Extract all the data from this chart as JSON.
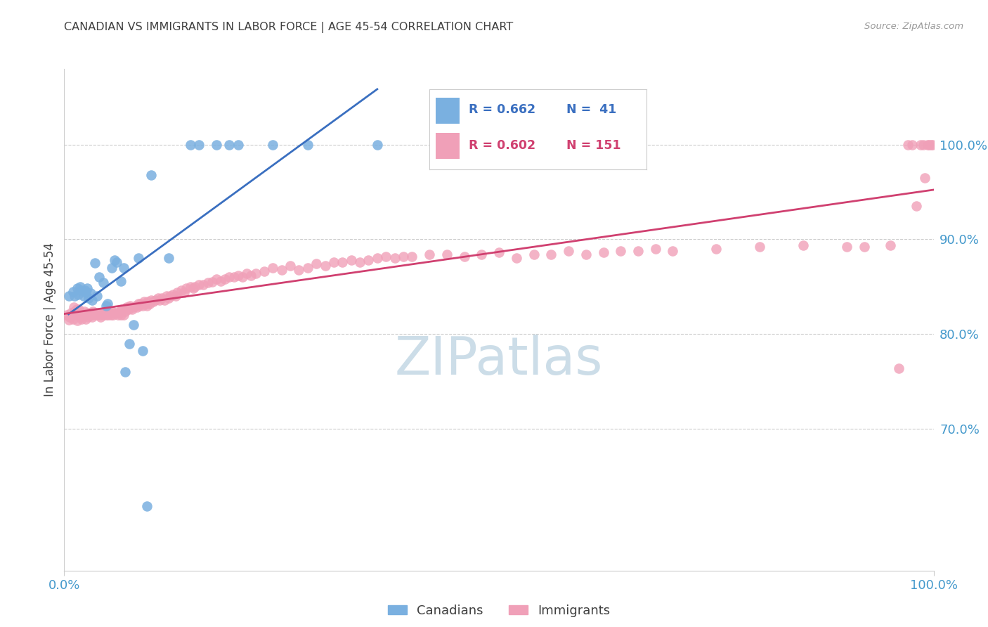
{
  "title": "CANADIAN VS IMMIGRANTS IN LABOR FORCE | AGE 45-54 CORRELATION CHART",
  "source_text": "Source: ZipAtlas.com",
  "ylabel": "In Labor Force | Age 45-54",
  "xlim": [
    0.0,
    1.0
  ],
  "ylim": [
    0.55,
    1.08
  ],
  "ytick_positions": [
    0.7,
    0.8,
    0.9,
    1.0
  ],
  "ytick_labels": [
    "70.0%",
    "80.0%",
    "90.0%",
    "100.0%"
  ],
  "xtick_positions": [
    0.0,
    1.0
  ],
  "xtick_labels": [
    "0.0%",
    "100.0%"
  ],
  "canadians_R": 0.662,
  "canadians_N": 41,
  "immigrants_R": 0.602,
  "immigrants_N": 151,
  "canadian_color": "#7ab0e0",
  "immigrant_color": "#f0a0b8",
  "canadian_line_color": "#3a6fc0",
  "immigrant_line_color": "#d04070",
  "background_color": "#ffffff",
  "watermark_text": "ZIPatlas",
  "watermark_color": "#ccdde8",
  "title_color": "#404040",
  "axis_label_color": "#404040",
  "right_tick_color": "#4499cc",
  "bottom_tick_color": "#4499cc",
  "grid_color": "#cccccc",
  "canadians_x": [
    0.005,
    0.01,
    0.012,
    0.015,
    0.016,
    0.018,
    0.02,
    0.022,
    0.024,
    0.025,
    0.026,
    0.028,
    0.03,
    0.032,
    0.035,
    0.038,
    0.04,
    0.045,
    0.048,
    0.05,
    0.055,
    0.058,
    0.06,
    0.065,
    0.068,
    0.07,
    0.075,
    0.08,
    0.085,
    0.09,
    0.095,
    0.1,
    0.12,
    0.145,
    0.155,
    0.175,
    0.19,
    0.2,
    0.24,
    0.28,
    0.36
  ],
  "canadians_y": [
    0.84,
    0.845,
    0.84,
    0.848,
    0.842,
    0.85,
    0.846,
    0.84,
    0.846,
    0.844,
    0.848,
    0.838,
    0.843,
    0.836,
    0.875,
    0.84,
    0.86,
    0.854,
    0.83,
    0.832,
    0.87,
    0.878,
    0.876,
    0.856,
    0.87,
    0.76,
    0.79,
    0.81,
    0.88,
    0.782,
    0.618,
    0.968,
    0.88,
    1.0,
    1.0,
    1.0,
    1.0,
    1.0,
    1.0,
    1.0,
    1.0
  ],
  "immigrants_x": [
    0.003,
    0.005,
    0.006,
    0.008,
    0.01,
    0.011,
    0.012,
    0.013,
    0.014,
    0.015,
    0.016,
    0.017,
    0.018,
    0.019,
    0.02,
    0.021,
    0.022,
    0.023,
    0.024,
    0.025,
    0.026,
    0.027,
    0.028,
    0.03,
    0.031,
    0.032,
    0.033,
    0.035,
    0.036,
    0.038,
    0.04,
    0.041,
    0.042,
    0.044,
    0.045,
    0.046,
    0.048,
    0.05,
    0.051,
    0.052,
    0.054,
    0.055,
    0.056,
    0.058,
    0.06,
    0.062,
    0.064,
    0.065,
    0.066,
    0.068,
    0.07,
    0.072,
    0.074,
    0.075,
    0.076,
    0.078,
    0.08,
    0.082,
    0.084,
    0.085,
    0.086,
    0.088,
    0.09,
    0.092,
    0.094,
    0.095,
    0.096,
    0.098,
    0.1,
    0.102,
    0.105,
    0.108,
    0.11,
    0.112,
    0.115,
    0.118,
    0.12,
    0.122,
    0.125,
    0.128,
    0.13,
    0.135,
    0.138,
    0.14,
    0.145,
    0.148,
    0.15,
    0.155,
    0.16,
    0.165,
    0.17,
    0.175,
    0.18,
    0.185,
    0.19,
    0.195,
    0.2,
    0.205,
    0.21,
    0.215,
    0.22,
    0.23,
    0.24,
    0.25,
    0.26,
    0.27,
    0.28,
    0.29,
    0.3,
    0.31,
    0.32,
    0.33,
    0.34,
    0.35,
    0.36,
    0.37,
    0.38,
    0.39,
    0.4,
    0.42,
    0.44,
    0.46,
    0.48,
    0.5,
    0.52,
    0.54,
    0.56,
    0.58,
    0.6,
    0.62,
    0.64,
    0.66,
    0.68,
    0.7,
    0.75,
    0.8,
    0.85,
    0.9,
    0.92,
    0.95,
    0.96,
    0.97,
    0.975,
    0.98,
    0.985,
    0.988,
    0.99,
    0.993,
    0.995,
    0.997,
    0.999
  ],
  "immigrants_y": [
    0.82,
    0.815,
    0.818,
    0.822,
    0.816,
    0.828,
    0.824,
    0.82,
    0.826,
    0.814,
    0.82,
    0.826,
    0.822,
    0.818,
    0.816,
    0.822,
    0.82,
    0.824,
    0.82,
    0.816,
    0.822,
    0.818,
    0.82,
    0.822,
    0.82,
    0.818,
    0.824,
    0.82,
    0.822,
    0.82,
    0.822,
    0.82,
    0.818,
    0.822,
    0.82,
    0.822,
    0.82,
    0.822,
    0.82,
    0.822,
    0.82,
    0.824,
    0.82,
    0.822,
    0.822,
    0.82,
    0.824,
    0.82,
    0.826,
    0.82,
    0.824,
    0.828,
    0.826,
    0.828,
    0.83,
    0.826,
    0.828,
    0.83,
    0.828,
    0.832,
    0.83,
    0.832,
    0.83,
    0.834,
    0.832,
    0.83,
    0.834,
    0.832,
    0.836,
    0.834,
    0.836,
    0.838,
    0.836,
    0.838,
    0.836,
    0.84,
    0.838,
    0.84,
    0.842,
    0.84,
    0.844,
    0.846,
    0.844,
    0.848,
    0.85,
    0.848,
    0.85,
    0.852,
    0.852,
    0.854,
    0.855,
    0.858,
    0.856,
    0.858,
    0.86,
    0.86,
    0.862,
    0.86,
    0.864,
    0.862,
    0.864,
    0.866,
    0.87,
    0.868,
    0.872,
    0.868,
    0.87,
    0.874,
    0.872,
    0.876,
    0.876,
    0.878,
    0.876,
    0.878,
    0.88,
    0.882,
    0.88,
    0.882,
    0.882,
    0.884,
    0.884,
    0.882,
    0.884,
    0.886,
    0.88,
    0.884,
    0.884,
    0.888,
    0.884,
    0.886,
    0.888,
    0.888,
    0.89,
    0.888,
    0.89,
    0.892,
    0.894,
    0.892,
    0.892,
    0.894,
    0.764,
    1.0,
    1.0,
    0.935,
    1.0,
    1.0,
    0.965,
    1.0,
    1.0,
    1.0,
    1.0
  ]
}
